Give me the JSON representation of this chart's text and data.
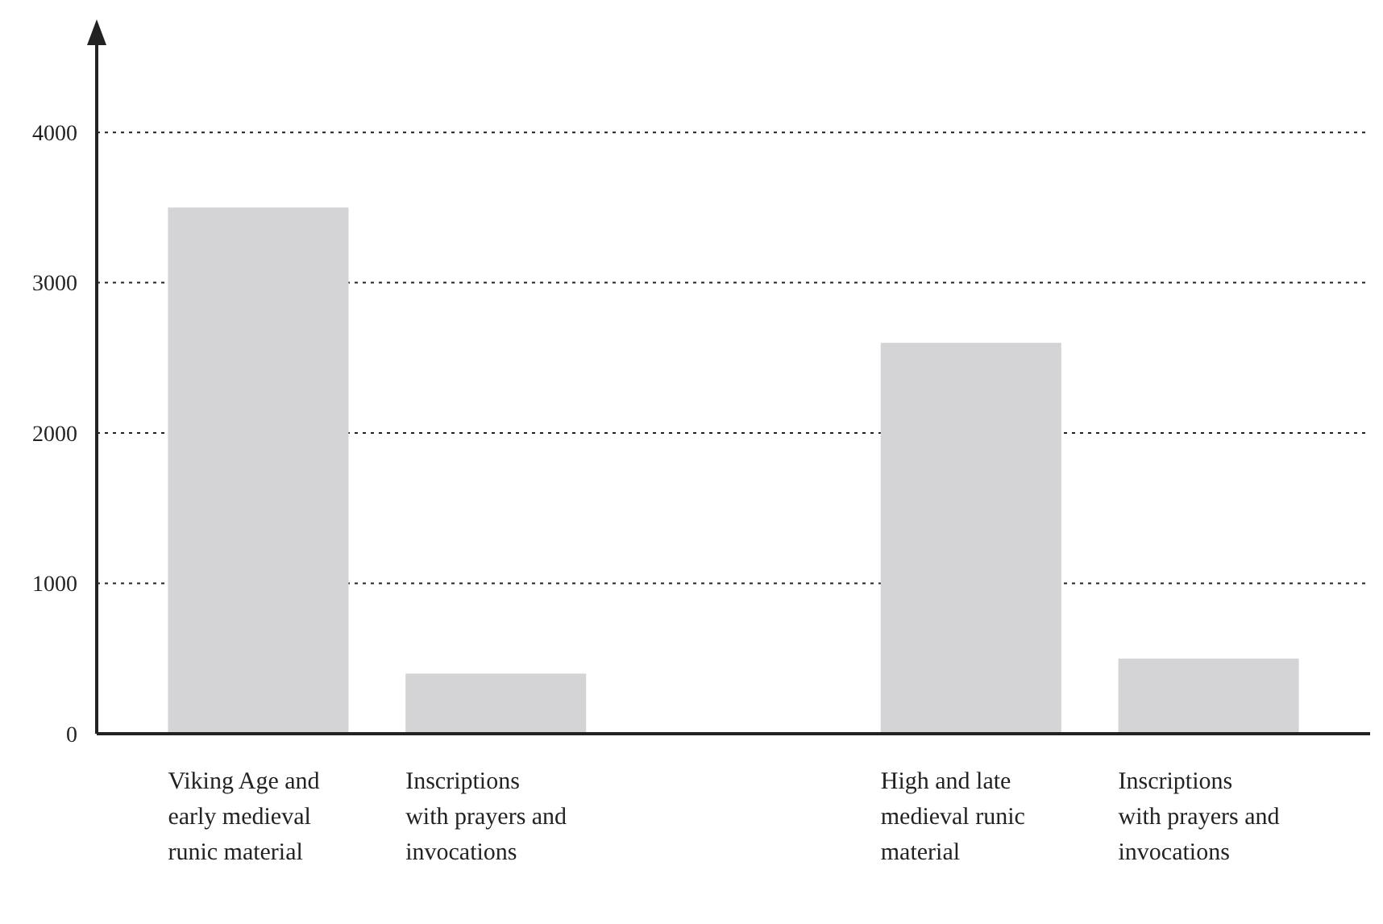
{
  "chart_data": {
    "type": "bar",
    "categories": [
      "Viking Age and early medieval runic material",
      "Inscriptions with prayers and invocations",
      null,
      "High and late medieval runic material",
      "Inscriptions with prayers and invocations"
    ],
    "values": [
      3500,
      400,
      null,
      2600,
      500
    ],
    "color": "#d4d4d6",
    "ylim": [
      0,
      4580
    ],
    "yticks": [
      0,
      1000,
      2000,
      3000,
      4000
    ],
    "grid": "y"
  }
}
